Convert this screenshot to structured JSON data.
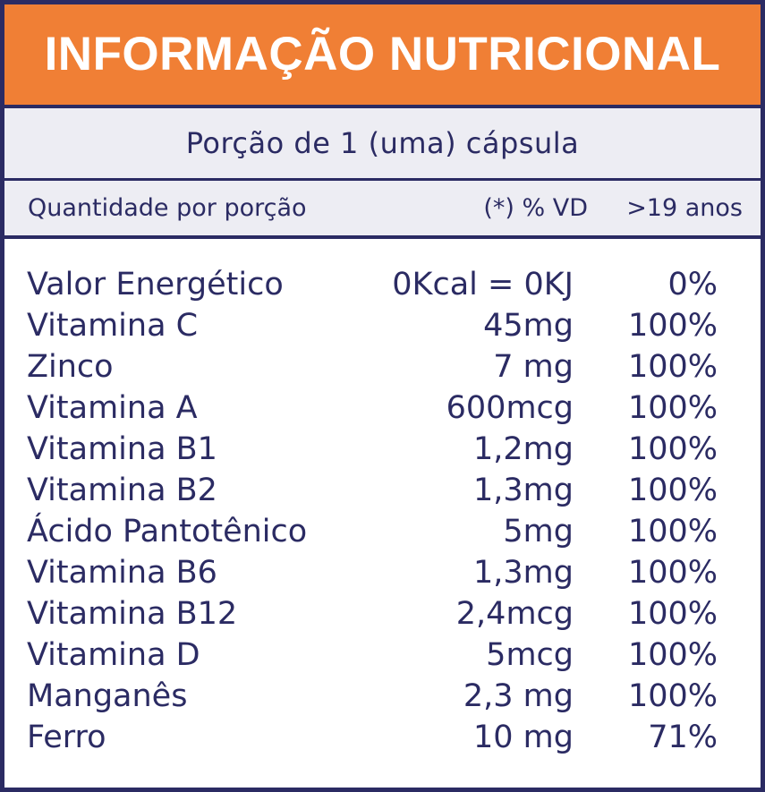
{
  "title": "INFORMAÇÃO NUTRICIONAL",
  "portion": "Porção de 1 (uma) cápsula",
  "header": {
    "quantity": "Quantidade por porção",
    "vd": "(*) % VD",
    "age": ">19 anos"
  },
  "colors": {
    "accent": "#f07f35",
    "border": "#2b2b63",
    "band": "#ededf3"
  },
  "rows": [
    {
      "name": "Valor Energético",
      "amount": "0Kcal = 0KJ",
      "vd": "0%"
    },
    {
      "name": "Vitamina C",
      "amount": "45mg",
      "vd": "100%"
    },
    {
      "name": "Zinco",
      "amount": "7 mg",
      "vd": "100%"
    },
    {
      "name": "Vitamina A",
      "amount": "600mcg",
      "vd": "100%"
    },
    {
      "name": "Vitamina B1",
      "amount": "1,2mg",
      "vd": "100%"
    },
    {
      "name": "Vitamina B2",
      "amount": "1,3mg",
      "vd": "100%"
    },
    {
      "name": "Ácido Pantotênico",
      "amount": "5mg",
      "vd": "100%"
    },
    {
      "name": "Vitamina B6",
      "amount": "1,3mg",
      "vd": "100%"
    },
    {
      "name": "Vitamina B12",
      "amount": "2,4mcg",
      "vd": "100%"
    },
    {
      "name": "Vitamina D",
      "amount": "5mcg",
      "vd": "100%"
    },
    {
      "name": "Manganês",
      "amount": "2,3 mg",
      "vd": "100%"
    },
    {
      "name": "Ferro",
      "amount": "10 mg",
      "vd": "71%"
    }
  ]
}
